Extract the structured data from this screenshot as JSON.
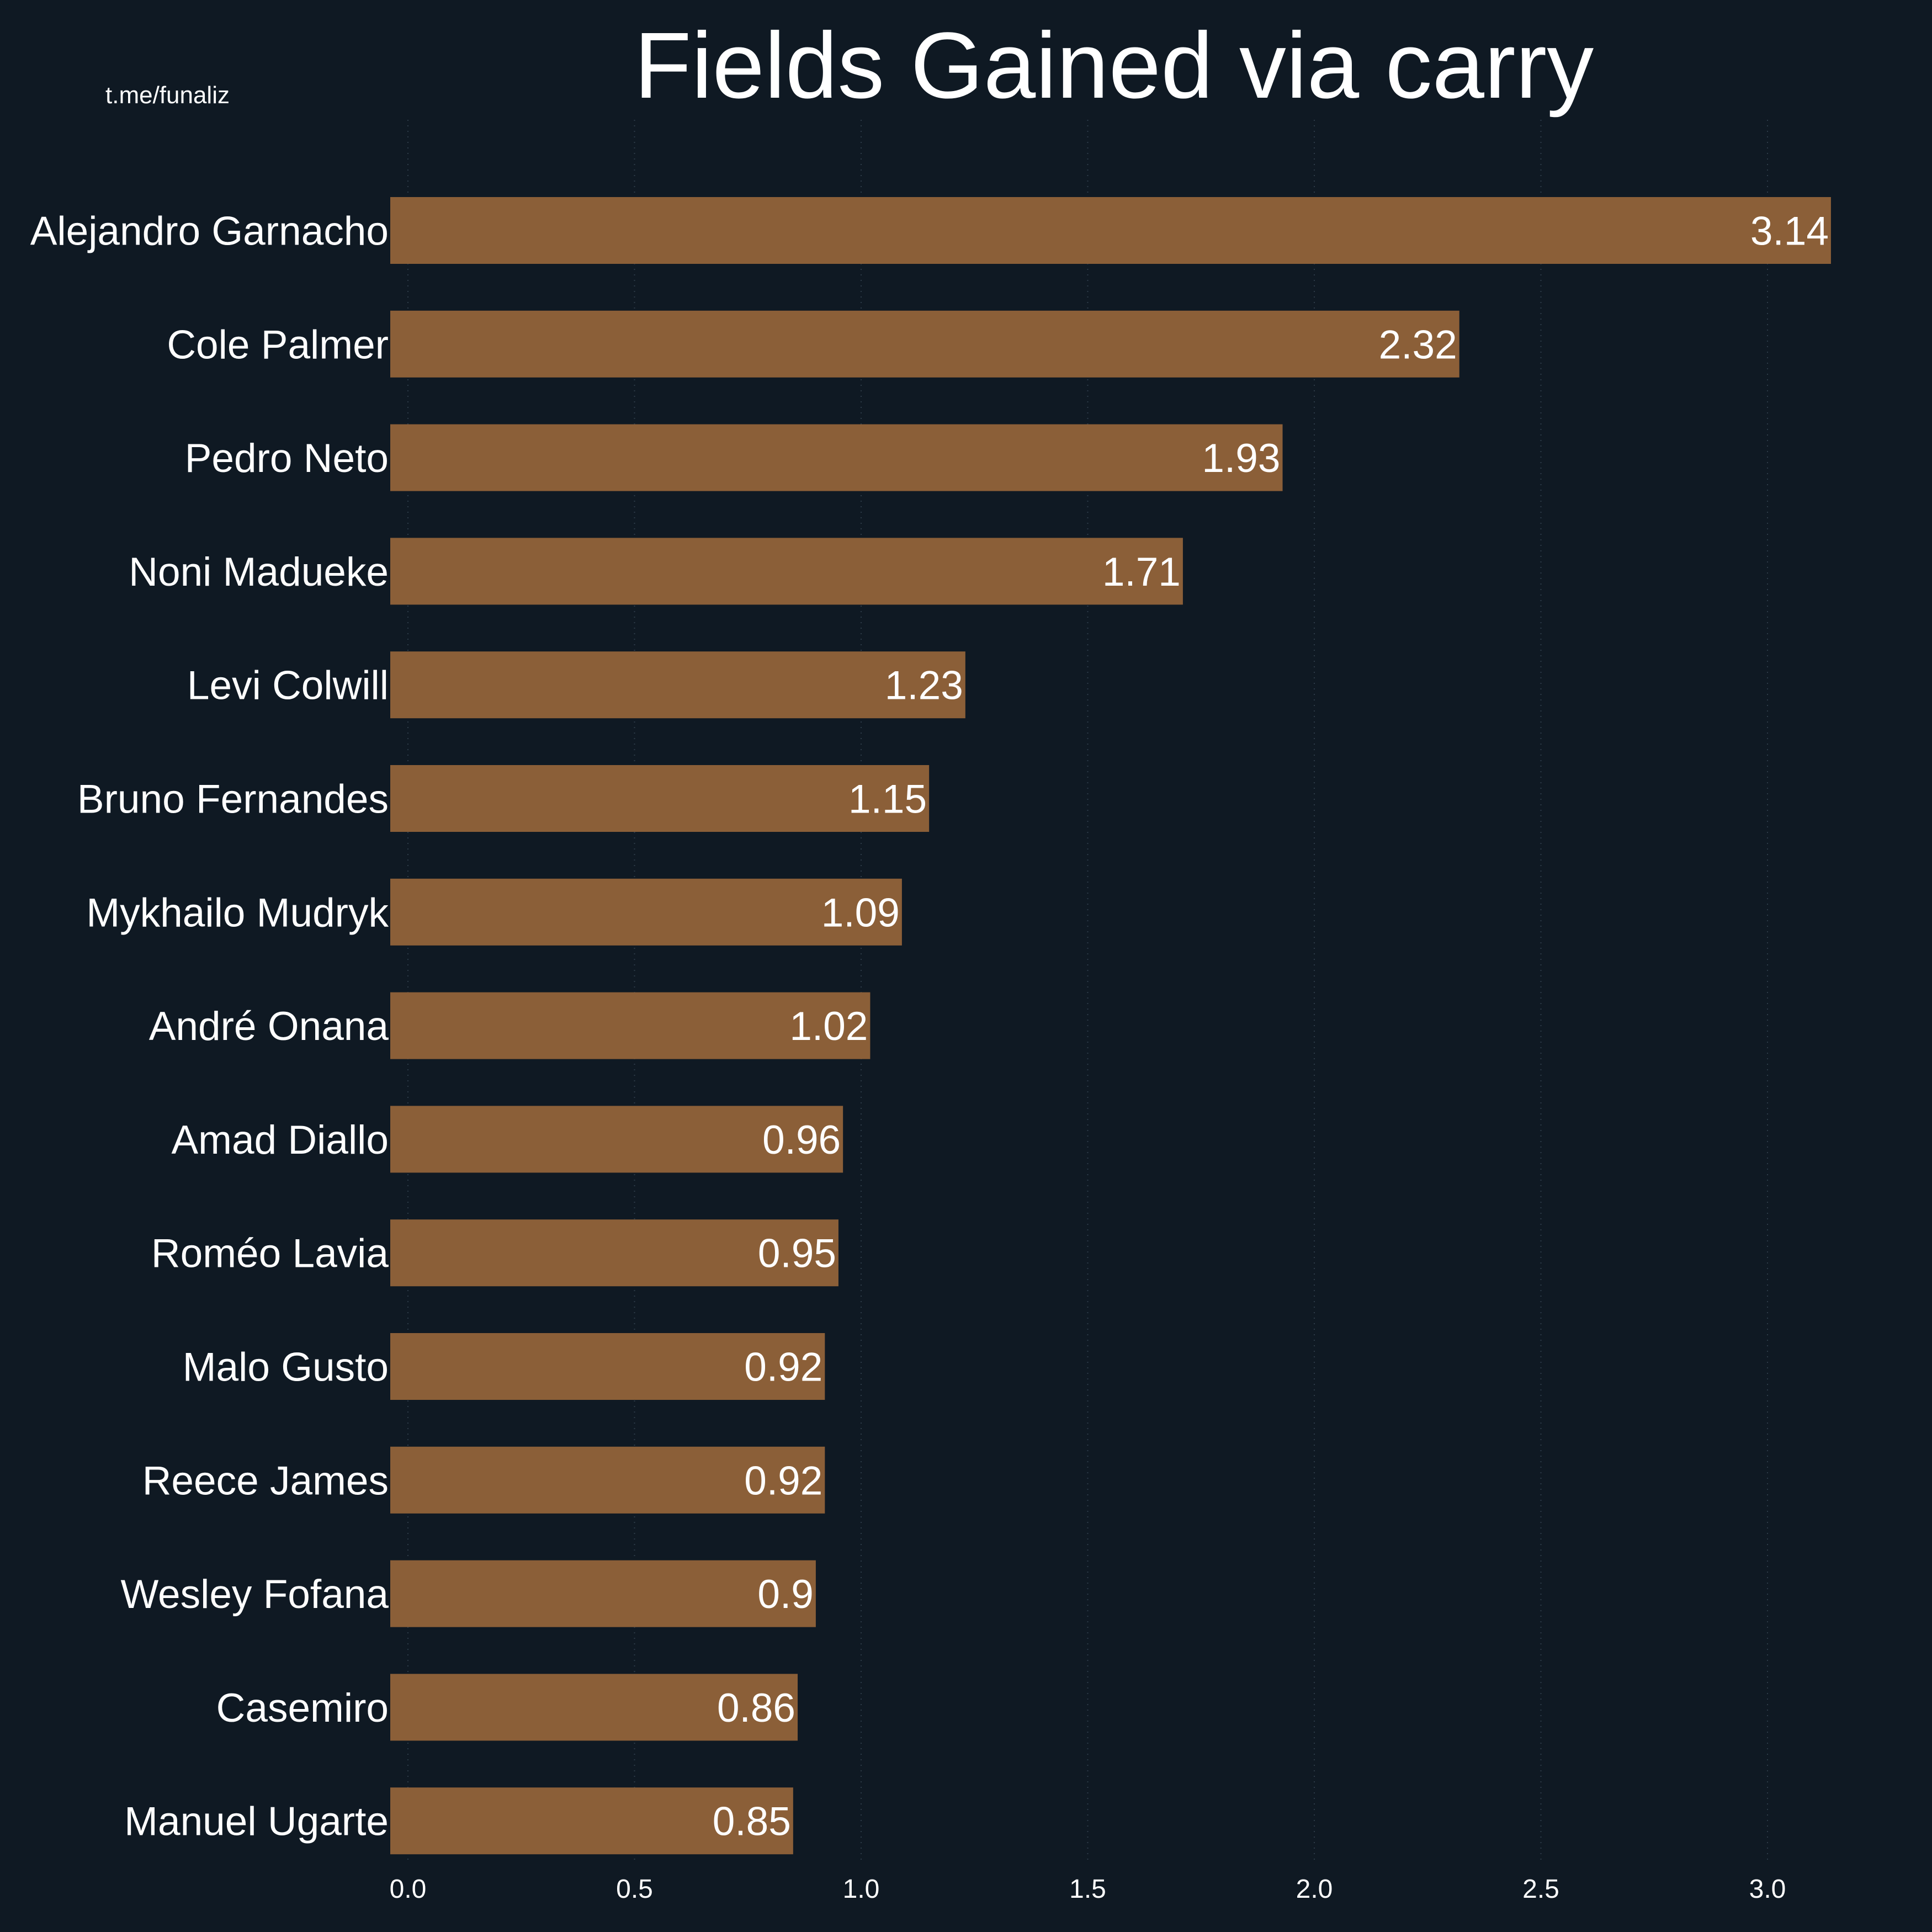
{
  "watermark": "t.me/funaliz",
  "colors": {
    "background": "#0f1923",
    "bar": "#8b5f38",
    "text": "#ffffff"
  },
  "chart_data": {
    "type": "bar",
    "orientation": "horizontal",
    "title": "Fields Gained via carry",
    "xlabel": "",
    "ylabel": "",
    "categories": [
      "Alejandro Garnacho",
      "Cole Palmer",
      "Pedro Neto",
      "Noni Madueke",
      "Levi Colwill",
      "Bruno Fernandes",
      "Mykhailo Mudryk",
      "André Onana",
      "Amad Diallo",
      "Roméo Lavia",
      "Malo Gusto",
      "Reece James",
      "Wesley Fofana",
      "Casemiro",
      "Manuel Ugarte"
    ],
    "values": [
      3.14,
      2.32,
      1.93,
      1.71,
      1.23,
      1.15,
      1.09,
      1.02,
      0.96,
      0.95,
      0.92,
      0.92,
      0.9,
      0.86,
      0.85
    ],
    "value_labels": [
      "3.14",
      "2.32",
      "1.93",
      "1.71",
      "1.23",
      "1.15",
      "1.09",
      "1.02",
      "0.96",
      "0.95",
      "0.92",
      "0.92",
      "0.9",
      "0.86",
      "0.85"
    ],
    "xticks": [
      0.0,
      0.5,
      1.0,
      1.5,
      2.0,
      2.5,
      3.0
    ],
    "xtick_labels": [
      "0.0",
      "0.5",
      "1.0",
      "1.5",
      "2.0",
      "2.5",
      "3.0"
    ],
    "xlim": [
      -0.04,
      3.3
    ],
    "grid": true,
    "legend": "none"
  }
}
